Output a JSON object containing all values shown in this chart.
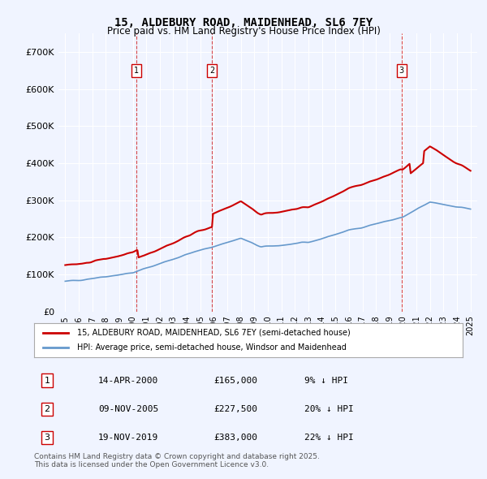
{
  "title": "15, ALDEBURY ROAD, MAIDENHEAD, SL6 7EY",
  "subtitle": "Price paid vs. HM Land Registry's House Price Index (HPI)",
  "ylabel": "",
  "ylim": [
    0,
    750000
  ],
  "yticks": [
    0,
    100000,
    200000,
    300000,
    400000,
    500000,
    600000,
    700000
  ],
  "ytick_labels": [
    "£0",
    "£100K",
    "£200K",
    "£300K",
    "£400K",
    "£500K",
    "£600K",
    "£700K"
  ],
  "background_color": "#f0f4ff",
  "plot_bg_color": "#f0f4ff",
  "grid_color": "#ffffff",
  "hpi_color": "#6699cc",
  "price_color": "#cc0000",
  "sale_marker_color": "#cc0000",
  "sale_dates": [
    2000.29,
    2005.86,
    2019.89
  ],
  "sale_prices": [
    165000,
    227500,
    383000
  ],
  "sale_labels": [
    "1",
    "2",
    "3"
  ],
  "sale_info": [
    {
      "num": "1",
      "date": "14-APR-2000",
      "price": "£165,000",
      "pct": "9% ↓ HPI"
    },
    {
      "num": "2",
      "date": "09-NOV-2005",
      "price": "£227,500",
      "pct": "20% ↓ HPI"
    },
    {
      "num": "3",
      "date": "19-NOV-2019",
      "price": "£383,000",
      "pct": "22% ↓ HPI"
    }
  ],
  "legend_line1": "15, ALDEBURY ROAD, MAIDENHEAD, SL6 7EY (semi-detached house)",
  "legend_line2": "HPI: Average price, semi-detached house, Windsor and Maidenhead",
  "footer": "Contains HM Land Registry data © Crown copyright and database right 2025.\nThis data is licensed under the Open Government Licence v3.0.",
  "xlim_start": 1994.5,
  "xlim_end": 2025.5
}
